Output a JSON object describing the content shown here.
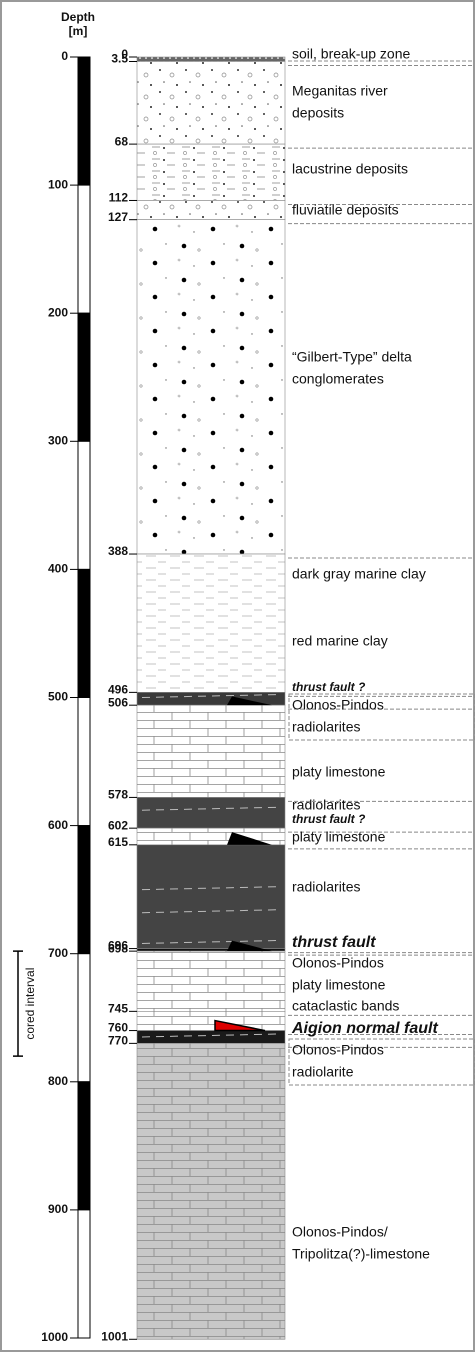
{
  "depth_axis": {
    "title": [
      "Depth",
      "[m]"
    ],
    "ticks": [
      0,
      100,
      200,
      300,
      400,
      500,
      600,
      700,
      800,
      900,
      1000
    ],
    "range": [
      0,
      1000
    ]
  },
  "cored_interval": {
    "label": "cored interval",
    "range": [
      698,
      780
    ]
  },
  "column": {
    "boundaries": [
      0,
      3.5,
      68,
      112,
      127,
      388,
      496,
      506,
      578,
      602,
      615,
      696,
      698,
      745,
      760,
      770,
      1001
    ],
    "units": [
      [
        "soil, break-up zone"
      ],
      [
        "Meganitas river",
        "deposits"
      ],
      [
        "lacustrine deposits"
      ],
      [
        "fluviatile deposits"
      ],
      [
        "“Gilbert-Type” delta",
        "conglomerates"
      ],
      [
        "dark gray marine clay"
      ],
      [
        "red marine clay"
      ],
      [
        "thrust fault ?"
      ],
      [
        "Olonos-Pindos",
        "radiolarites"
      ],
      [
        "platy limestone"
      ],
      [
        "radiolarites"
      ],
      [
        "thrust fault ?"
      ],
      [
        "platy limestone"
      ],
      [
        "radiolarites"
      ],
      [
        "thrust fault"
      ],
      [
        "Olonos-Pindos",
        "platy limestone"
      ],
      [
        "cataclastic bands"
      ],
      [
        "Aigion normal fault"
      ],
      [
        "Olonos-Pindos",
        "radiolarite"
      ],
      [
        "Olonos-Pindos/",
        "Tripolitza(?)-limestone"
      ]
    ]
  }
}
